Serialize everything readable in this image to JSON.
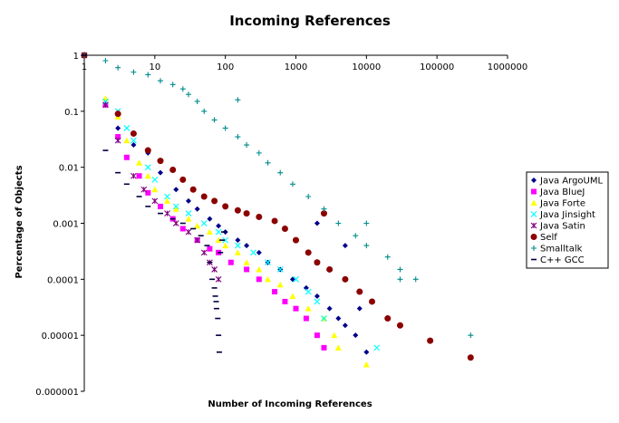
{
  "chart_data": {
    "type": "scatter",
    "title": "Incoming References",
    "xlabel": "Number of Incoming References",
    "ylabel": "Percentage of Objects",
    "x_scale": "log",
    "y_scale": "log",
    "xlim": [
      1,
      1000000
    ],
    "ylim": [
      1e-06,
      1
    ],
    "x_ticks": [
      "1",
      "10",
      "100",
      "1000",
      "10000",
      "100000",
      "1000000"
    ],
    "y_ticks": [
      "1",
      "0.1",
      "0.01",
      "0.001",
      "0.0001",
      "0.00001",
      "0.000001"
    ],
    "grid": false,
    "legend_position": "right",
    "series": [
      {
        "name": "Java ArgoUML",
        "marker": "diamond",
        "color": "#00008b",
        "points": [
          [
            1,
            1
          ],
          [
            2,
            0.16
          ],
          [
            3,
            0.05
          ],
          [
            5,
            0.025
          ],
          [
            8,
            0.018
          ],
          [
            12,
            0.008
          ],
          [
            20,
            0.004
          ],
          [
            30,
            0.0025
          ],
          [
            40,
            0.0018
          ],
          [
            60,
            0.0012
          ],
          [
            80,
            0.0009
          ],
          [
            100,
            0.0007
          ],
          [
            150,
            0.0005
          ],
          [
            200,
            0.0004
          ],
          [
            300,
            0.0003
          ],
          [
            400,
            0.0002
          ],
          [
            600,
            0.00015
          ],
          [
            900,
            0.0001
          ],
          [
            1400,
            7e-05
          ],
          [
            2000,
            5e-05
          ],
          [
            3000,
            3e-05
          ],
          [
            4000,
            2e-05
          ],
          [
            5000,
            1.5e-05
          ],
          [
            7000,
            1e-05
          ],
          [
            10000,
            5e-06
          ],
          [
            8000,
            3e-05
          ],
          [
            5000,
            0.0004
          ],
          [
            2000,
            0.001
          ]
        ]
      },
      {
        "name": "Java BlueJ",
        "marker": "square",
        "color": "#ff00ff",
        "points": [
          [
            1,
            1
          ],
          [
            2,
            0.13
          ],
          [
            3,
            0.035
          ],
          [
            4,
            0.015
          ],
          [
            6,
            0.007
          ],
          [
            8,
            0.0035
          ],
          [
            12,
            0.002
          ],
          [
            18,
            0.0012
          ],
          [
            25,
            0.0008
          ],
          [
            40,
            0.0005
          ],
          [
            60,
            0.00035
          ],
          [
            80,
            0.0003
          ],
          [
            120,
            0.0002
          ],
          [
            200,
            0.00015
          ],
          [
            300,
            0.0001
          ],
          [
            500,
            6e-05
          ],
          [
            700,
            4e-05
          ],
          [
            1000,
            3e-05
          ],
          [
            1400,
            2e-05
          ],
          [
            2000,
            1e-05
          ],
          [
            2500,
            6e-06
          ]
        ]
      },
      {
        "name": "Java Forte",
        "marker": "triangle",
        "color": "#ffff00",
        "points": [
          [
            1,
            1
          ],
          [
            2,
            0.17
          ],
          [
            3,
            0.08
          ],
          [
            4,
            0.03
          ],
          [
            6,
            0.012
          ],
          [
            8,
            0.007
          ],
          [
            10,
            0.004
          ],
          [
            15,
            0.0025
          ],
          [
            20,
            0.0018
          ],
          [
            30,
            0.0012
          ],
          [
            40,
            0.0009
          ],
          [
            60,
            0.0007
          ],
          [
            80,
            0.0005
          ],
          [
            100,
            0.0004
          ],
          [
            150,
            0.0003
          ],
          [
            200,
            0.0002
          ],
          [
            300,
            0.00015
          ],
          [
            400,
            0.0001
          ],
          [
            600,
            8e-05
          ],
          [
            900,
            5e-05
          ],
          [
            1500,
            3e-05
          ],
          [
            2500,
            2e-05
          ],
          [
            3500,
            1e-05
          ],
          [
            4000,
            6e-06
          ],
          [
            10000,
            3e-06
          ]
        ]
      },
      {
        "name": "Java Jinsight",
        "marker": "x",
        "color": "#00ffff",
        "points": [
          [
            1,
            1
          ],
          [
            2,
            0.15
          ],
          [
            3,
            0.1
          ],
          [
            4,
            0.05
          ],
          [
            5,
            0.03
          ],
          [
            8,
            0.01
          ],
          [
            10,
            0.006
          ],
          [
            15,
            0.003
          ],
          [
            20,
            0.002
          ],
          [
            30,
            0.0015
          ],
          [
            50,
            0.001
          ],
          [
            80,
            0.0007
          ],
          [
            100,
            0.0005
          ],
          [
            150,
            0.0004
          ],
          [
            250,
            0.0003
          ],
          [
            400,
            0.0002
          ],
          [
            600,
            0.00015
          ],
          [
            1000,
            0.0001
          ],
          [
            1500,
            6e-05
          ],
          [
            2000,
            4e-05
          ],
          [
            2500,
            2e-05
          ],
          [
            14000,
            6e-06
          ]
        ]
      },
      {
        "name": "Java Satin",
        "marker": "asterisk",
        "color": "#800080",
        "points": [
          [
            1,
            1
          ],
          [
            2,
            0.13
          ],
          [
            3,
            0.03
          ],
          [
            5,
            0.007
          ],
          [
            7,
            0.004
          ],
          [
            10,
            0.0025
          ],
          [
            15,
            0.0015
          ],
          [
            20,
            0.001
          ],
          [
            30,
            0.0007
          ],
          [
            40,
            0.0005
          ],
          [
            50,
            0.0003
          ],
          [
            60,
            0.0002
          ],
          [
            70,
            0.00015
          ],
          [
            80,
            0.0001
          ]
        ]
      },
      {
        "name": "Self",
        "marker": "circle",
        "color": "#8b0000",
        "points": [
          [
            1,
            1
          ],
          [
            3,
            0.09
          ],
          [
            5,
            0.04
          ],
          [
            8,
            0.02
          ],
          [
            12,
            0.013
          ],
          [
            18,
            0.009
          ],
          [
            25,
            0.006
          ],
          [
            35,
            0.004
          ],
          [
            50,
            0.003
          ],
          [
            70,
            0.0025
          ],
          [
            100,
            0.002
          ],
          [
            150,
            0.0017
          ],
          [
            200,
            0.0015
          ],
          [
            300,
            0.0013
          ],
          [
            500,
            0.0011
          ],
          [
            700,
            0.0008
          ],
          [
            1000,
            0.0005
          ],
          [
            1500,
            0.0003
          ],
          [
            2000,
            0.0002
          ],
          [
            3000,
            0.00015
          ],
          [
            5000,
            0.0001
          ],
          [
            8000,
            6e-05
          ],
          [
            12000,
            4e-05
          ],
          [
            20000,
            2e-05
          ],
          [
            30000,
            1.5e-05
          ],
          [
            80000,
            8e-06
          ],
          [
            300000,
            4e-06
          ],
          [
            2500,
            0.0015
          ]
        ]
      },
      {
        "name": "Smalltalk",
        "marker": "plus",
        "color": "#008b8b",
        "points": [
          [
            1,
            1
          ],
          [
            2,
            0.8
          ],
          [
            3,
            0.6
          ],
          [
            5,
            0.5
          ],
          [
            8,
            0.45
          ],
          [
            12,
            0.35
          ],
          [
            18,
            0.3
          ],
          [
            25,
            0.25
          ],
          [
            30,
            0.2
          ],
          [
            40,
            0.15
          ],
          [
            50,
            0.1
          ],
          [
            70,
            0.07
          ],
          [
            100,
            0.05
          ],
          [
            150,
            0.035
          ],
          [
            200,
            0.025
          ],
          [
            300,
            0.018
          ],
          [
            400,
            0.012
          ],
          [
            600,
            0.008
          ],
          [
            900,
            0.005
          ],
          [
            1500,
            0.003
          ],
          [
            2500,
            0.0018
          ],
          [
            4000,
            0.001
          ],
          [
            7000,
            0.0006
          ],
          [
            10000,
            0.0004
          ],
          [
            20000,
            0.00025
          ],
          [
            30000,
            0.00015
          ],
          [
            50000,
            0.0001
          ],
          [
            300000,
            1e-05
          ],
          [
            30000,
            0.0001
          ],
          [
            10000,
            0.001
          ],
          [
            150,
            0.16
          ]
        ]
      },
      {
        "name": "C++ GCC",
        "marker": "dash",
        "color": "#000040",
        "points": [
          [
            1,
            1
          ],
          [
            2,
            0.02
          ],
          [
            3,
            0.008
          ],
          [
            4,
            0.005
          ],
          [
            6,
            0.003
          ],
          [
            8,
            0.002
          ],
          [
            12,
            0.0015
          ],
          [
            18,
            0.0012
          ],
          [
            25,
            0.001
          ],
          [
            35,
            0.0008
          ],
          [
            45,
            0.0006
          ],
          [
            55,
            0.0004
          ],
          [
            60,
            0.0002
          ],
          [
            65,
            0.0001
          ],
          [
            70,
            7e-05
          ],
          [
            72,
            5e-05
          ],
          [
            74,
            4e-05
          ],
          [
            75,
            3e-05
          ],
          [
            78,
            2e-05
          ],
          [
            80,
            1e-05
          ],
          [
            82,
            5e-06
          ],
          [
            85,
            0.0003
          ],
          [
            90,
            0.0005
          ],
          [
            95,
            0.0007
          ]
        ]
      }
    ]
  }
}
